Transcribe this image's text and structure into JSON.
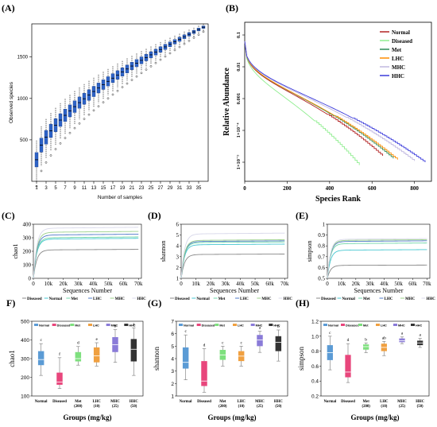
{
  "panels": {
    "A": {
      "letter": "(A)",
      "type": "boxplot",
      "xlabel": "Number of samples",
      "ylabel": "Observed species",
      "xticks": [
        "1",
        "3",
        "5",
        "7",
        "9",
        "11",
        "13",
        "15",
        "17",
        "19",
        "21",
        "23",
        "25",
        "27",
        "29",
        "31",
        "33",
        "35"
      ],
      "yticks": [
        500,
        1000,
        1500
      ],
      "ylim": [
        0,
        1900
      ],
      "n": 36,
      "y_first": 260,
      "y_last": 1860
    },
    "B": {
      "letter": "(B)",
      "type": "line",
      "xlabel": "Species Rank",
      "ylabel": "Relative Abundance",
      "xticks": [
        "0",
        "200",
        "400",
        "600",
        "800"
      ],
      "yticks": [
        "0.1",
        "0.01",
        "0.001",
        "1×10⁻⁴",
        "1×10⁻⁵"
      ],
      "xlim": [
        0,
        880
      ],
      "log10_ylim": [
        -5.6,
        -0.6
      ],
      "legend": [
        {
          "name": "Normal",
          "color": "#b22222",
          "end": 650
        },
        {
          "name": "Diseased",
          "color": "#90ee90",
          "end": 540
        },
        {
          "name": "Met",
          "color": "#2e8b57",
          "end": 700
        },
        {
          "name": "LHC",
          "color": "#ff8c00",
          "end": 720
        },
        {
          "name": "MHC",
          "color": "#c0b8e0",
          "end": 800
        },
        {
          "name": "HHC",
          "color": "#3b3bdb",
          "end": 850
        }
      ]
    },
    "C": {
      "letter": "(C)",
      "type": "line",
      "ylabel": "chao1",
      "xlabel": "Sequences Number",
      "xticks": [
        "0",
        "10k",
        "20k",
        "30k",
        "40k",
        "50k",
        "60k",
        "70k"
      ],
      "yticks": [
        "0",
        "100",
        "200",
        "300",
        "400"
      ],
      "ylim": [
        0,
        400
      ],
      "legend": [
        "Diseased",
        "Normal",
        "Met",
        "LHC",
        "MHC",
        "HHC"
      ],
      "plateaus": [
        210,
        290,
        300,
        320,
        340,
        370
      ]
    },
    "D": {
      "letter": "(D)",
      "type": "line",
      "ylabel": "shannon",
      "xlabel": "Sequences Number",
      "xticks": [
        "0",
        "10k",
        "20k",
        "30k",
        "40k",
        "50k",
        "60k",
        "70k"
      ],
      "yticks": [
        "1",
        "2",
        "3",
        "4",
        "5",
        "6"
      ],
      "ylim": [
        1,
        6
      ],
      "legend": [
        "Diseased",
        "Normal",
        "Met",
        "LHC",
        "MHC",
        "HHC"
      ],
      "plateaus": [
        3.2,
        4.1,
        4.3,
        4.4,
        4.5,
        5.1
      ]
    },
    "E": {
      "letter": "(E)",
      "type": "line",
      "ylabel": "simpson",
      "xlabel": "Sequences Number",
      "xticks": [
        "0",
        "10k",
        "20k",
        "30k",
        "40k",
        "50k",
        "60k",
        "70k"
      ],
      "yticks": [
        "0.5",
        "0.6",
        "0.7",
        "0.8",
        "0.9",
        "1"
      ],
      "ylim": [
        0.5,
        1.0
      ],
      "legend": [
        "Diseased",
        "Normal",
        "Met",
        "LHC",
        "MHC",
        "HHC"
      ],
      "plateaus": [
        0.62,
        0.76,
        0.82,
        0.84,
        0.85,
        0.86
      ]
    },
    "F": {
      "letter": "F)",
      "type": "boxplot",
      "ylabel": "chao1",
      "xlabel": "Groups (mg/kg)",
      "ylim": [
        100,
        500
      ],
      "yticks": [
        "100",
        "200",
        "300",
        "400",
        "500"
      ],
      "legend": [
        "Normal",
        "Diseased",
        "Met",
        "LHC",
        "MHC",
        "HHC"
      ],
      "groups": [
        "Normal",
        "Diseased",
        "Met\n(200)",
        "LHC\n(10)",
        "MHC\n(25)",
        "HHC\n(50)"
      ],
      "letters": [
        "c",
        "f",
        "d",
        "e",
        "b",
        "a"
      ],
      "boxes": [
        {
          "min": 210,
          "q1": 265,
          "med": 295,
          "q3": 340,
          "max": 380
        },
        {
          "min": 140,
          "q1": 160,
          "med": 175,
          "q3": 225,
          "max": 305
        },
        {
          "min": 265,
          "q1": 285,
          "med": 300,
          "q3": 335,
          "max": 365
        },
        {
          "min": 260,
          "q1": 280,
          "med": 315,
          "q3": 360,
          "max": 385
        },
        {
          "min": 280,
          "q1": 335,
          "med": 375,
          "q3": 415,
          "max": 455
        },
        {
          "min": 210,
          "q1": 285,
          "med": 350,
          "q3": 405,
          "max": 465
        }
      ]
    },
    "G": {
      "letter": "(G)",
      "type": "boxplot",
      "ylabel": "shannon",
      "xlabel": "Groups (mg/kg)",
      "ylim": [
        1,
        7
      ],
      "yticks": [
        "1",
        "2",
        "3",
        "4",
        "5",
        "6",
        "7"
      ],
      "legend": [
        "Normal",
        "Diseased",
        "Met",
        "LHC",
        "MHC",
        "HHC"
      ],
      "groups": [
        "Normal",
        "Diseased",
        "Met\n(200)",
        "LHC\n(10)",
        "MHC\n(25)",
        "HHC\n(50)"
      ],
      "letters": [
        "c",
        "d",
        "c",
        "c",
        "a",
        "b"
      ],
      "boxes": [
        {
          "min": 2.3,
          "q1": 3.2,
          "med": 3.7,
          "q3": 4.9,
          "max": 5.9
        },
        {
          "min": 1.3,
          "q1": 1.8,
          "med": 2.2,
          "q3": 3.8,
          "max": 4.8
        },
        {
          "min": 3.4,
          "q1": 3.9,
          "med": 4.3,
          "q3": 4.7,
          "max": 5.0
        },
        {
          "min": 3.4,
          "q1": 3.8,
          "med": 4.2,
          "q3": 4.6,
          "max": 5.0
        },
        {
          "min": 4.5,
          "q1": 5.0,
          "med": 5.5,
          "q3": 5.9,
          "max": 6.2
        },
        {
          "min": 3.8,
          "q1": 4.6,
          "med": 5.3,
          "q3": 5.8,
          "max": 6.3
        }
      ]
    },
    "H": {
      "letter": "(H)",
      "type": "boxplot",
      "ylabel": "simpson",
      "xlabel": "Groups (mg/kg)",
      "ylim": [
        0.2,
        1.2
      ],
      "yticks": [
        "0.2",
        "0.4",
        "0.6",
        "0.8",
        "1.0",
        "1.2"
      ],
      "legend": [
        "Normal",
        "Diseased",
        "Met",
        "LHC",
        "MHC",
        "HHC"
      ],
      "groups": [
        "Normal",
        "Diseased",
        "Met\n(200)",
        "LHC\n(10)",
        "MHC\n(25)",
        "HHC\n(50)"
      ],
      "letters": [
        "c",
        "d",
        "b",
        "ab",
        "a",
        "a"
      ],
      "boxes": [
        {
          "min": 0.55,
          "q1": 0.68,
          "med": 0.78,
          "q3": 0.88,
          "max": 1.0
        },
        {
          "min": 0.38,
          "q1": 0.45,
          "med": 0.52,
          "q3": 0.75,
          "max": 0.9
        },
        {
          "min": 0.78,
          "q1": 0.82,
          "med": 0.86,
          "q3": 0.89,
          "max": 0.91
        },
        {
          "min": 0.74,
          "q1": 0.8,
          "med": 0.85,
          "q3": 0.9,
          "max": 0.93
        },
        {
          "min": 0.9,
          "q1": 0.92,
          "med": 0.94,
          "q3": 0.97,
          "max": 0.99
        },
        {
          "min": 0.85,
          "q1": 0.88,
          "med": 0.91,
          "q3": 0.94,
          "max": 0.97
        }
      ]
    }
  },
  "colors": {
    "groups": [
      "#5b9bd5",
      "#e8467c",
      "#7ee07e",
      "#f0a040",
      "#8a7bd8",
      "#333333"
    ],
    "alpha_lines": [
      "#888888",
      "#46c7d0",
      "#6fd6a8",
      "#4f78c8",
      "#9bd08a",
      "#d8d8ea"
    ],
    "boxA": "#2e63c7"
  },
  "chart_data": [
    {
      "panel": "A",
      "type": "boxplot",
      "xlabel": "Number of samples",
      "ylabel": "Observed species",
      "x": [
        1,
        3,
        5,
        7,
        9,
        11,
        13,
        15,
        17,
        19,
        21,
        23,
        25,
        27,
        29,
        31,
        33,
        35
      ],
      "ylim": [
        0,
        1900
      ]
    },
    {
      "panel": "B",
      "type": "line",
      "xlabel": "Species Rank",
      "ylabel": "Relative Abundance",
      "series": [
        "Normal",
        "Diseased",
        "Met",
        "LHC",
        "MHC",
        "HHC"
      ]
    },
    {
      "panel": "C",
      "type": "line",
      "ylabel": "chao1",
      "xlabel": "Sequences Number",
      "ylim": [
        0,
        400
      ]
    },
    {
      "panel": "D",
      "type": "line",
      "ylabel": "shannon",
      "xlabel": "Sequences Number",
      "ylim": [
        1,
        6
      ]
    },
    {
      "panel": "E",
      "type": "line",
      "ylabel": "simpson",
      "xlabel": "Sequences Number",
      "ylim": [
        0.5,
        1.0
      ]
    },
    {
      "panel": "F",
      "type": "boxplot",
      "ylabel": "chao1",
      "xlabel": "Groups (mg/kg)"
    },
    {
      "panel": "G",
      "type": "boxplot",
      "ylabel": "shannon",
      "xlabel": "Groups (mg/kg)"
    },
    {
      "panel": "H",
      "type": "boxplot",
      "ylabel": "simpson",
      "xlabel": "Groups (mg/kg)"
    }
  ]
}
